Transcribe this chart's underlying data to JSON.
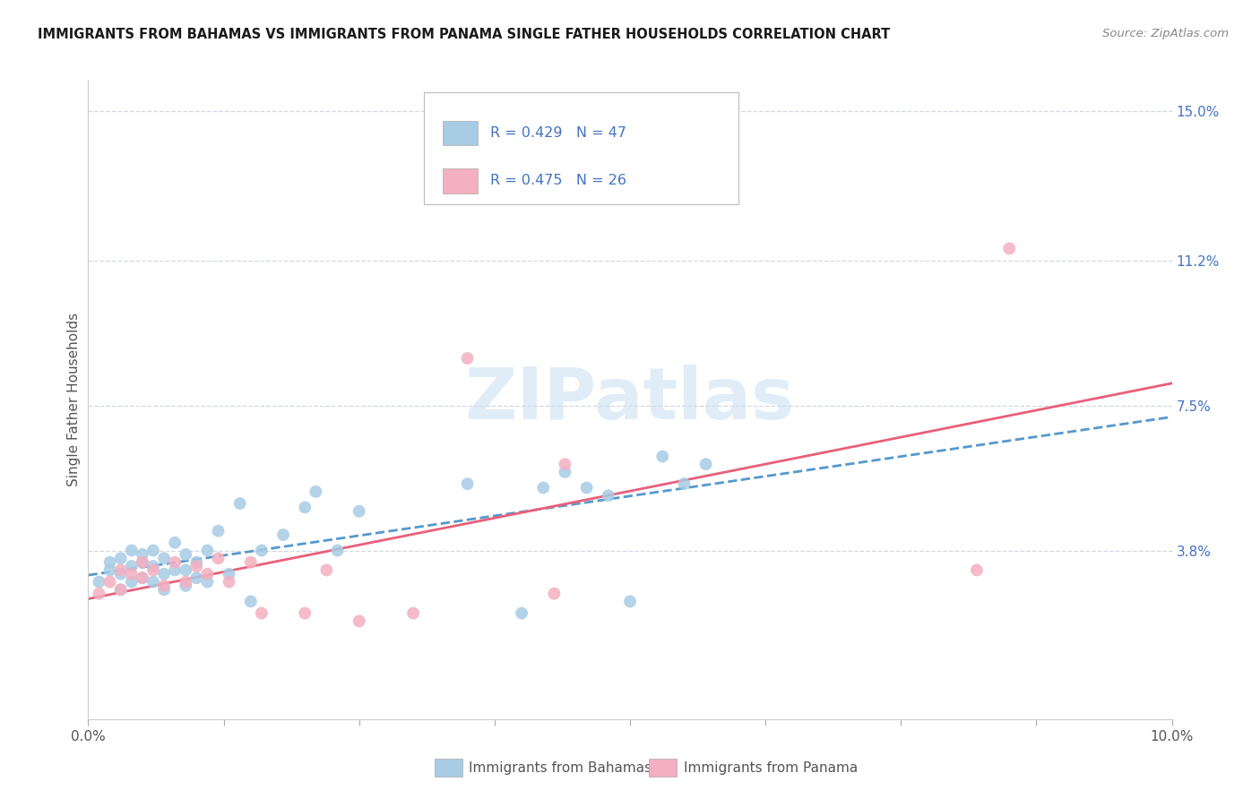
{
  "title": "IMMIGRANTS FROM BAHAMAS VS IMMIGRANTS FROM PANAMA SINGLE FATHER HOUSEHOLDS CORRELATION CHART",
  "source": "Source: ZipAtlas.com",
  "ylabel_label": "Single Father Households",
  "yticks": [
    0.038,
    0.075,
    0.112,
    0.15
  ],
  "ytick_labels": [
    "3.8%",
    "7.5%",
    "11.2%",
    "15.0%"
  ],
  "xlim": [
    0.0,
    0.1
  ],
  "ylim": [
    -0.005,
    0.158
  ],
  "R_bahamas": "0.429",
  "N_bahamas": "47",
  "R_panama": "0.475",
  "N_panama": "26",
  "bahamas_color": "#a8cce4",
  "panama_color": "#f4afc0",
  "bahamas_line_color": "#5599cc",
  "panama_line_color": "#e8607a",
  "text_color_blue": "#4472c4",
  "grid_color": "#d0d8e0",
  "bahamas_x": [
    0.001,
    0.002,
    0.002,
    0.003,
    0.003,
    0.003,
    0.004,
    0.004,
    0.004,
    0.005,
    0.005,
    0.005,
    0.006,
    0.006,
    0.006,
    0.007,
    0.007,
    0.007,
    0.008,
    0.008,
    0.009,
    0.009,
    0.009,
    0.01,
    0.01,
    0.011,
    0.011,
    0.012,
    0.013,
    0.014,
    0.015,
    0.016,
    0.018,
    0.02,
    0.021,
    0.023,
    0.025,
    0.035,
    0.04,
    0.042,
    0.044,
    0.046,
    0.048,
    0.05,
    0.053,
    0.055,
    0.057
  ],
  "bahamas_y": [
    0.03,
    0.033,
    0.035,
    0.028,
    0.032,
    0.036,
    0.03,
    0.034,
    0.038,
    0.031,
    0.035,
    0.037,
    0.03,
    0.034,
    0.038,
    0.032,
    0.036,
    0.028,
    0.033,
    0.04,
    0.029,
    0.033,
    0.037,
    0.031,
    0.035,
    0.03,
    0.038,
    0.043,
    0.032,
    0.05,
    0.025,
    0.038,
    0.042,
    0.049,
    0.053,
    0.038,
    0.048,
    0.055,
    0.022,
    0.054,
    0.058,
    0.054,
    0.052,
    0.025,
    0.062,
    0.055,
    0.06
  ],
  "panama_x": [
    0.001,
    0.002,
    0.003,
    0.003,
    0.004,
    0.005,
    0.005,
    0.006,
    0.007,
    0.008,
    0.009,
    0.01,
    0.011,
    0.012,
    0.013,
    0.015,
    0.016,
    0.02,
    0.022,
    0.025,
    0.03,
    0.035,
    0.043,
    0.044,
    0.082,
    0.085
  ],
  "panama_y": [
    0.027,
    0.03,
    0.028,
    0.033,
    0.032,
    0.031,
    0.035,
    0.033,
    0.029,
    0.035,
    0.03,
    0.034,
    0.032,
    0.036,
    0.03,
    0.035,
    0.022,
    0.022,
    0.033,
    0.02,
    0.022,
    0.087,
    0.027,
    0.06,
    0.033,
    0.115
  ]
}
